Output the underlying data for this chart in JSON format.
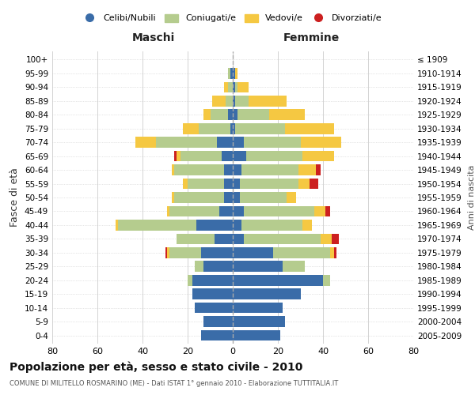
{
  "age_groups": [
    "0-4",
    "5-9",
    "10-14",
    "15-19",
    "20-24",
    "25-29",
    "30-34",
    "35-39",
    "40-44",
    "45-49",
    "50-54",
    "55-59",
    "60-64",
    "65-69",
    "70-74",
    "75-79",
    "80-84",
    "85-89",
    "90-94",
    "95-99",
    "100+"
  ],
  "birth_years": [
    "2005-2009",
    "2000-2004",
    "1995-1999",
    "1990-1994",
    "1985-1989",
    "1980-1984",
    "1975-1979",
    "1970-1974",
    "1965-1969",
    "1960-1964",
    "1955-1959",
    "1950-1954",
    "1945-1949",
    "1940-1944",
    "1935-1939",
    "1930-1934",
    "1925-1929",
    "1920-1924",
    "1915-1919",
    "1910-1914",
    "≤ 1909"
  ],
  "maschi": {
    "celibi": [
      14,
      13,
      17,
      18,
      18,
      13,
      14,
      8,
      16,
      6,
      4,
      4,
      4,
      5,
      7,
      1,
      2,
      0,
      0,
      1,
      0
    ],
    "coniugati": [
      0,
      0,
      0,
      0,
      2,
      4,
      14,
      17,
      35,
      22,
      22,
      16,
      22,
      18,
      27,
      14,
      8,
      3,
      2,
      1,
      0
    ],
    "vedovi": [
      0,
      0,
      0,
      0,
      0,
      0,
      1,
      0,
      1,
      1,
      1,
      2,
      1,
      2,
      9,
      7,
      3,
      6,
      2,
      0,
      0
    ],
    "divorziati": [
      0,
      0,
      0,
      0,
      0,
      0,
      1,
      0,
      0,
      0,
      0,
      0,
      0,
      1,
      0,
      0,
      0,
      0,
      0,
      0,
      0
    ]
  },
  "femmine": {
    "nubili": [
      21,
      23,
      22,
      30,
      40,
      22,
      18,
      5,
      4,
      5,
      3,
      3,
      4,
      6,
      5,
      1,
      2,
      1,
      1,
      1,
      0
    ],
    "coniugate": [
      0,
      0,
      0,
      0,
      3,
      10,
      25,
      34,
      27,
      31,
      21,
      26,
      25,
      25,
      25,
      22,
      14,
      6,
      1,
      0,
      0
    ],
    "vedove": [
      0,
      0,
      0,
      0,
      0,
      0,
      2,
      5,
      4,
      5,
      4,
      5,
      8,
      14,
      18,
      22,
      16,
      17,
      5,
      1,
      0
    ],
    "divorziate": [
      0,
      0,
      0,
      0,
      0,
      0,
      1,
      3,
      0,
      2,
      0,
      4,
      2,
      0,
      0,
      0,
      0,
      0,
      0,
      0,
      0
    ]
  },
  "colors": {
    "celibi_nubili": "#3a6ca8",
    "coniugati": "#b5cc8e",
    "vedovi": "#f5c842",
    "divorziati": "#cc2020"
  },
  "xlim": 80,
  "title": "Popolazione per età, sesso e stato civile - 2010",
  "subtitle": "COMUNE DI MILITELLO ROSMARINO (ME) - Dati ISTAT 1° gennaio 2010 - Elaborazione TUTTITALIA.IT",
  "legend_labels": [
    "Celibi/Nubili",
    "Coniugati/e",
    "Vedovi/e",
    "Divorziati/e"
  ],
  "xlabel_left": "Maschi",
  "xlabel_right": "Femmine",
  "ylabel": "Fasce di età",
  "ylabel_right": "Anni di nascita",
  "background_color": "#ffffff",
  "grid_color": "#cccccc"
}
